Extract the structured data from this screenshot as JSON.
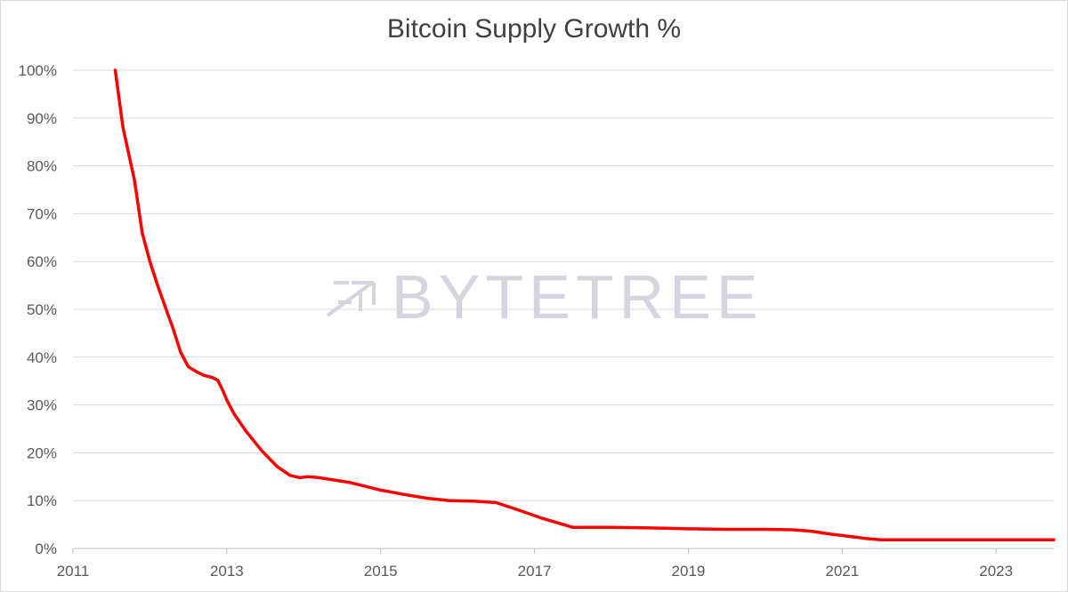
{
  "chart_data": {
    "type": "line",
    "title": "Bitcoin Supply Growth %",
    "xlabel": "",
    "ylabel": "",
    "xlim": [
      2011,
      2023.75
    ],
    "ylim": [
      0,
      100
    ],
    "x_ticks": [
      "2011",
      "2013",
      "2015",
      "2017",
      "2019",
      "2021",
      "2023"
    ],
    "y_ticks": [
      "0%",
      "10%",
      "20%",
      "30%",
      "40%",
      "50%",
      "60%",
      "70%",
      "80%",
      "90%",
      "100%"
    ],
    "grid": true,
    "watermark": "BYTETREE",
    "series": [
      {
        "name": "",
        "color": "#ff0000",
        "x": [
          2011.55,
          2011.65,
          2011.8,
          2011.9,
          2012.0,
          2012.1,
          2012.2,
          2012.3,
          2012.4,
          2012.45,
          2012.5,
          2012.6,
          2012.7,
          2012.8,
          2012.88,
          2012.95,
          2013.0,
          2013.1,
          2013.25,
          2013.45,
          2013.65,
          2013.82,
          2013.95,
          2014.05,
          2014.2,
          2014.4,
          2014.6,
          2014.8,
          2015.0,
          2015.3,
          2015.6,
          2015.9,
          2016.2,
          2016.5,
          2016.8,
          2017.1,
          2017.5,
          2018.0,
          2018.5,
          2019.0,
          2019.5,
          2020.0,
          2020.35,
          2020.6,
          2020.85,
          2021.1,
          2021.3,
          2021.5,
          2022.0,
          2022.5,
          2023.0,
          2023.75
        ],
        "values": [
          100,
          88,
          77,
          66,
          60,
          55,
          50.5,
          46,
          41,
          39.5,
          38,
          37,
          36.2,
          35.8,
          35.2,
          33,
          31,
          28,
          24.5,
          20.5,
          17.2,
          15.3,
          14.8,
          15.0,
          14.8,
          14.3,
          13.8,
          13.0,
          12.2,
          11.3,
          10.5,
          10.0,
          9.9,
          9.6,
          8.0,
          6.3,
          4.4,
          4.4,
          4.3,
          4.1,
          4.0,
          4.0,
          3.9,
          3.6,
          3.0,
          2.5,
          2.1,
          1.8,
          1.8,
          1.8,
          1.8,
          1.8
        ]
      }
    ]
  }
}
